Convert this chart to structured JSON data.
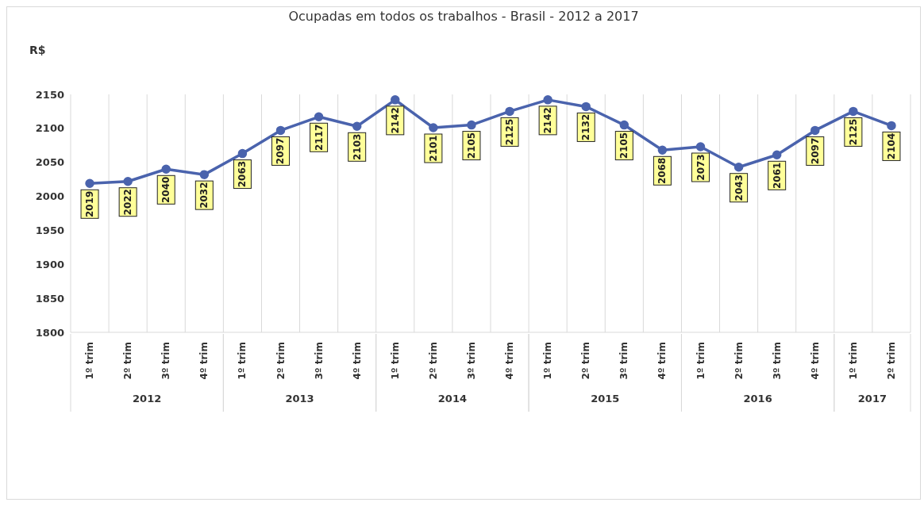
{
  "chart_data": {
    "type": "line",
    "title": "Ocupadas em todos os trabalhos - Brasil - 2012 a 2017",
    "ylabel": "R$",
    "categories": [
      "1º trim",
      "2º trim",
      "3º trim",
      "4º trim",
      "1º trim",
      "2º trim",
      "3º trim",
      "4º trim",
      "1º trim",
      "2º trim",
      "3º trim",
      "4º trim",
      "1º trim",
      "2º trim",
      "3º trim",
      "4º trim",
      "1º trim",
      "2º trim",
      "3º trim",
      "4º trim",
      "1º trim",
      "2º trim"
    ],
    "annotations": [
      "2012",
      "2013",
      "2014",
      "2015",
      "2016",
      "2017"
    ],
    "series": [
      {
        "color": "#4a63ad",
        "values": [
          2019,
          2022,
          2040,
          2032,
          2063,
          2097,
          2117,
          2103,
          2142,
          2101,
          2105,
          2125,
          2142,
          2132,
          2105,
          2068,
          2073,
          2043,
          2061,
          2097,
          2125,
          2104
        ]
      }
    ],
    "ylim": [
      1800,
      2150
    ],
    "yticks": [
      1800,
      1850,
      1900,
      1950,
      2000,
      2050,
      2100,
      2150
    ],
    "grid": "x",
    "marker": "circle",
    "line_style": "solid",
    "data_labels": true
  }
}
